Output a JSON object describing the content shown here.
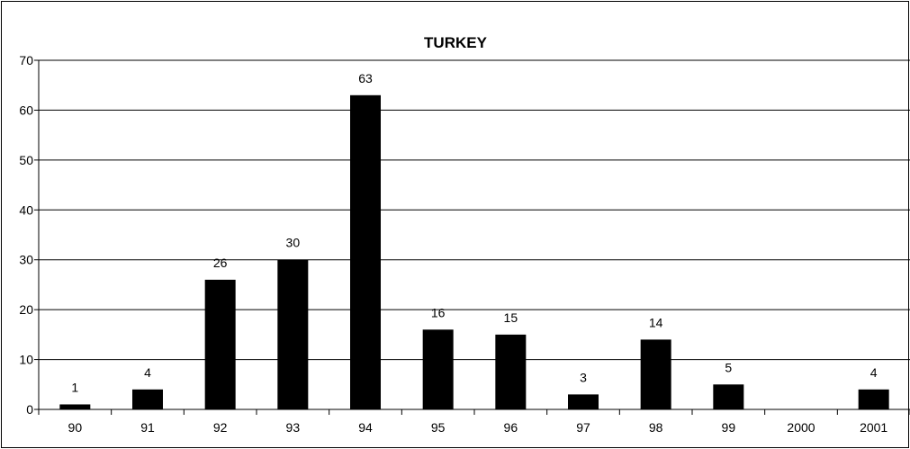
{
  "chart_data": {
    "type": "bar",
    "title": "TURKEY",
    "xlabel": "",
    "ylabel": "",
    "categories": [
      "90",
      "91",
      "92",
      "93",
      "94",
      "95",
      "96",
      "97",
      "98",
      "99",
      "2000",
      "2001"
    ],
    "values": [
      1,
      4,
      26,
      30,
      63,
      16,
      15,
      3,
      14,
      5,
      null,
      4
    ],
    "data_labels": [
      "1",
      "4",
      "26",
      "30",
      "63",
      "16",
      "15",
      "3",
      "14",
      "5",
      "",
      "4"
    ],
    "ylim": [
      0,
      70
    ],
    "yticks": [
      "0",
      "10",
      "20",
      "30",
      "40",
      "50",
      "60",
      "70"
    ],
    "grid": true,
    "legend": "none",
    "colors": {
      "bar": "#000000",
      "grid": "#000000",
      "background": "#ffffff"
    }
  }
}
